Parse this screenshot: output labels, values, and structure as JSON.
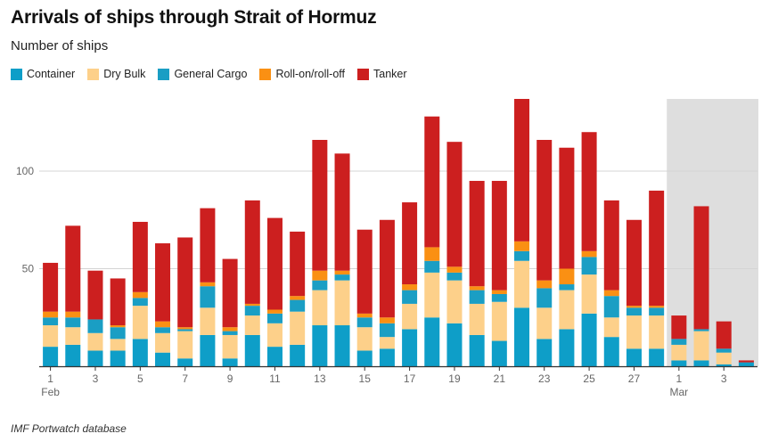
{
  "chart_data": {
    "type": "bar",
    "stacked": true,
    "title": "Arrivals of ships through Strait of Hormuz",
    "subtitle": "Number of ships",
    "source": "IMF Portwatch database",
    "ylim": [
      0,
      137
    ],
    "yticks": [
      50,
      100
    ],
    "grid": true,
    "legend_position": "top-left",
    "categories": [
      "1",
      "2",
      "3",
      "4",
      "5",
      "6",
      "7",
      "8",
      "9",
      "10",
      "11",
      "12",
      "13",
      "14",
      "15",
      "16",
      "17",
      "18",
      "19",
      "20",
      "21",
      "22",
      "23",
      "24",
      "25",
      "26",
      "27",
      "28",
      "1",
      "2",
      "3",
      "4"
    ],
    "x_tick_labels": [
      {
        "index": 0,
        "label": "1",
        "month": "Feb"
      },
      {
        "index": 2,
        "label": "3"
      },
      {
        "index": 4,
        "label": "5"
      },
      {
        "index": 6,
        "label": "7"
      },
      {
        "index": 8,
        "label": "9"
      },
      {
        "index": 10,
        "label": "11"
      },
      {
        "index": 12,
        "label": "13"
      },
      {
        "index": 14,
        "label": "15"
      },
      {
        "index": 16,
        "label": "17"
      },
      {
        "index": 18,
        "label": "19"
      },
      {
        "index": 20,
        "label": "21"
      },
      {
        "index": 22,
        "label": "23"
      },
      {
        "index": 24,
        "label": "25"
      },
      {
        "index": 26,
        "label": "27"
      },
      {
        "index": 28,
        "label": "1",
        "month": "Mar"
      },
      {
        "index": 30,
        "label": "3"
      }
    ],
    "highlight_range": [
      28,
      31
    ],
    "series": [
      {
        "name": "Container",
        "color": "#0e9ec8",
        "values": [
          10,
          11,
          8,
          8,
          14,
          7,
          4,
          16,
          4,
          16,
          10,
          11,
          21,
          21,
          8,
          9,
          19,
          25,
          22,
          16,
          13,
          30,
          14,
          19,
          27,
          15,
          9,
          9,
          3,
          3,
          1,
          2
        ]
      },
      {
        "name": "Dry Bulk",
        "color": "#fdd08a",
        "values": [
          11,
          9,
          9,
          6,
          17,
          10,
          14,
          14,
          12,
          10,
          12,
          17,
          18,
          23,
          12,
          6,
          13,
          23,
          22,
          16,
          20,
          24,
          16,
          20,
          20,
          10,
          17,
          17,
          8,
          15,
          6,
          0
        ]
      },
      {
        "name": "General Cargo",
        "color": "#1a9ec4",
        "values": [
          4,
          5,
          7,
          6,
          4,
          3,
          1,
          11,
          2,
          5,
          5,
          6,
          5,
          3,
          5,
          7,
          7,
          6,
          4,
          7,
          4,
          5,
          10,
          3,
          9,
          11,
          4,
          4,
          3,
          1,
          2,
          0
        ]
      },
      {
        "name": "Roll-on/roll-off",
        "color": "#fa9013",
        "values": [
          3,
          3,
          0,
          1,
          3,
          3,
          1,
          2,
          2,
          1,
          2,
          2,
          5,
          2,
          2,
          3,
          3,
          7,
          3,
          2,
          2,
          5,
          4,
          8,
          3,
          3,
          1,
          1,
          0,
          0,
          0,
          0
        ]
      },
      {
        "name": "Tanker",
        "color": "#cc1f1f",
        "values": [
          25,
          44,
          25,
          24,
          36,
          40,
          46,
          38,
          35,
          53,
          47,
          33,
          67,
          60,
          43,
          50,
          42,
          67,
          64,
          54,
          56,
          73,
          72,
          62,
          61,
          46,
          44,
          59,
          12,
          63,
          14,
          1
        ]
      }
    ]
  }
}
